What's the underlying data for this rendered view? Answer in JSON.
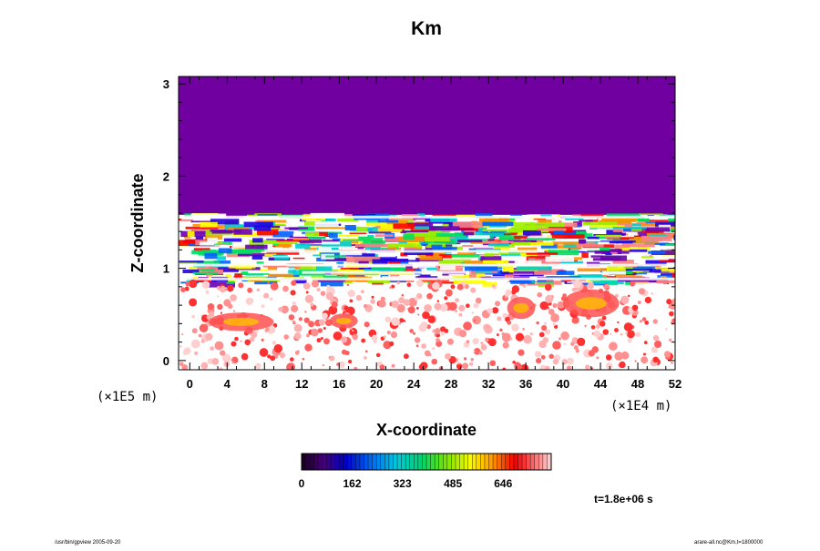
{
  "chart_data": {
    "type": "heatmap",
    "title": "Km",
    "xlabel": "X-coordinate",
    "ylabel": "Z-coordinate",
    "x_ticks": [
      0,
      4,
      8,
      12,
      16,
      20,
      24,
      28,
      32,
      36,
      40,
      44,
      48,
      52
    ],
    "x_tick_labels": [
      "0",
      "4",
      "8",
      "12",
      "16",
      "20",
      "24",
      "28",
      "32",
      "36",
      "40",
      "44",
      "48",
      "52"
    ],
    "x_unit": "(×1E4 m)",
    "xlim": [
      -1.2,
      52
    ],
    "y_ticks": [
      0,
      1,
      2,
      3
    ],
    "y_tick_labels": [
      "0",
      "1",
      "2",
      "3"
    ],
    "y_unit": "(×1E5 m)",
    "ylim": [
      -0.1,
      3.08
    ],
    "colorbar": {
      "min": 0,
      "max": 800,
      "ticks": [
        0,
        162,
        323,
        485,
        646
      ],
      "tick_labels": [
        "0",
        "162",
        "323",
        "485",
        "646"
      ]
    },
    "bands": [
      {
        "z_bottom": 1.6,
        "z_top": 3.08,
        "value": 15
      },
      {
        "z_bottom": 0.85,
        "z_top": 1.6,
        "value": "mixed"
      },
      {
        "z_bottom": -0.1,
        "z_top": 0.85,
        "value": "scattered"
      }
    ],
    "time_label": "t=1.8e+06 s"
  },
  "footer": {
    "left": "/usr/bin/gpview 2005-09-20",
    "right": "arare-all.nc@Km,t=1800000"
  },
  "colors": {
    "background": "#ffffff",
    "upper_band": "#7000a0",
    "axis": "#000000"
  }
}
